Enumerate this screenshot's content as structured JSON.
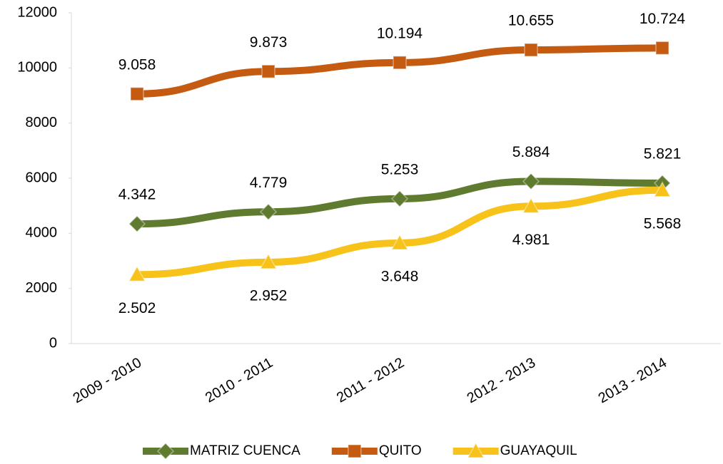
{
  "chart_data": {
    "type": "line",
    "categories": [
      "2009 - 2010",
      "2010 - 2011",
      "2011 - 2012",
      "2012 - 2013",
      "2013 - 2014"
    ],
    "series": [
      {
        "name": "MATRIZ CUENCA",
        "color": "#5f7b2f",
        "marker": "diamond",
        "label_position": "above",
        "values": [
          4342,
          4779,
          5253,
          5884,
          5821
        ],
        "value_labels": [
          "4.342",
          "4.779",
          "5.253",
          "5.884",
          "5.821"
        ]
      },
      {
        "name": "QUITO",
        "color": "#c55a11",
        "marker": "square",
        "label_position": "above",
        "values": [
          9058,
          9873,
          10194,
          10655,
          10724
        ],
        "value_labels": [
          "9.058",
          "9.873",
          "10.194",
          "10.655",
          "10.724"
        ]
      },
      {
        "name": "GUAYAQUIL",
        "color": "#f7c21a",
        "marker": "triangle",
        "label_position": "below",
        "values": [
          2502,
          2952,
          3648,
          4981,
          5568
        ],
        "value_labels": [
          "2.502",
          "2.952",
          "3.648",
          "4.981",
          "5.568"
        ]
      }
    ],
    "ylim": [
      0,
      12000
    ],
    "yticks": [
      0,
      2000,
      4000,
      6000,
      8000,
      10000,
      12000
    ],
    "grid": false,
    "legend": "bottom"
  }
}
